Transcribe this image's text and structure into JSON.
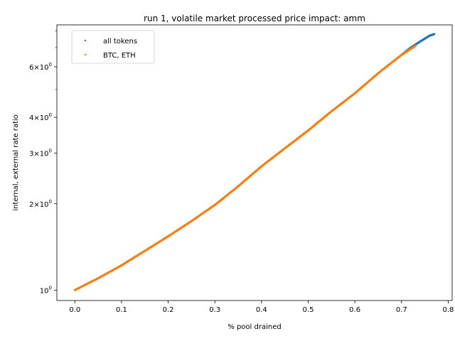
{
  "chart_data": {
    "type": "scatter",
    "title": "run 1, volatile market processed price impact: amm",
    "xlabel": "% pool drained",
    "ylabel": "internal, external rate ratio",
    "xlim": [
      -0.0385,
      0.8085
    ],
    "ylim": [
      0.92,
      8.4
    ],
    "yscale": "log",
    "grid": false,
    "legend_position": "top-left",
    "x_ticks": [
      0.0,
      0.1,
      0.2,
      0.3,
      0.4,
      0.5,
      0.6,
      0.7,
      0.8
    ],
    "x_tick_labels": [
      "0.0",
      "0.1",
      "0.2",
      "0.3",
      "0.4",
      "0.5",
      "0.6",
      "0.7",
      "0.8"
    ],
    "y_major_ticks": [
      1,
      2,
      3,
      4,
      6
    ],
    "y_tick_labels": [
      {
        "base": "10",
        "exp": "0",
        "mant": ""
      },
      {
        "base": "10",
        "exp": "0",
        "mant": "2×"
      },
      {
        "base": "10",
        "exp": "0",
        "mant": "3×"
      },
      {
        "base": "10",
        "exp": "0",
        "mant": "4×"
      },
      {
        "base": "10",
        "exp": "0",
        "mant": "6×"
      }
    ],
    "y_minor_ticks": [
      5,
      7,
      8
    ],
    "series": [
      {
        "name": "all tokens",
        "color": "#1f77b4",
        "x": [
          0.0,
          0.05,
          0.1,
          0.15,
          0.2,
          0.25,
          0.3,
          0.35,
          0.4,
          0.45,
          0.5,
          0.55,
          0.6,
          0.65,
          0.7,
          0.72,
          0.74,
          0.76,
          0.77
        ],
        "y": [
          1.0,
          1.1,
          1.22,
          1.37,
          1.54,
          1.74,
          1.98,
          2.3,
          2.7,
          3.12,
          3.6,
          4.2,
          4.85,
          5.7,
          6.6,
          7.0,
          7.35,
          7.7,
          7.8
        ]
      },
      {
        "name": "BTC, ETH",
        "color": "#ff7f0e",
        "x": [
          0.0,
          0.05,
          0.1,
          0.15,
          0.2,
          0.25,
          0.3,
          0.35,
          0.4,
          0.45,
          0.5,
          0.55,
          0.6,
          0.65,
          0.7,
          0.73
        ],
        "y": [
          1.0,
          1.1,
          1.22,
          1.37,
          1.54,
          1.74,
          1.98,
          2.3,
          2.7,
          3.12,
          3.6,
          4.2,
          4.85,
          5.7,
          6.6,
          7.1
        ]
      }
    ]
  }
}
